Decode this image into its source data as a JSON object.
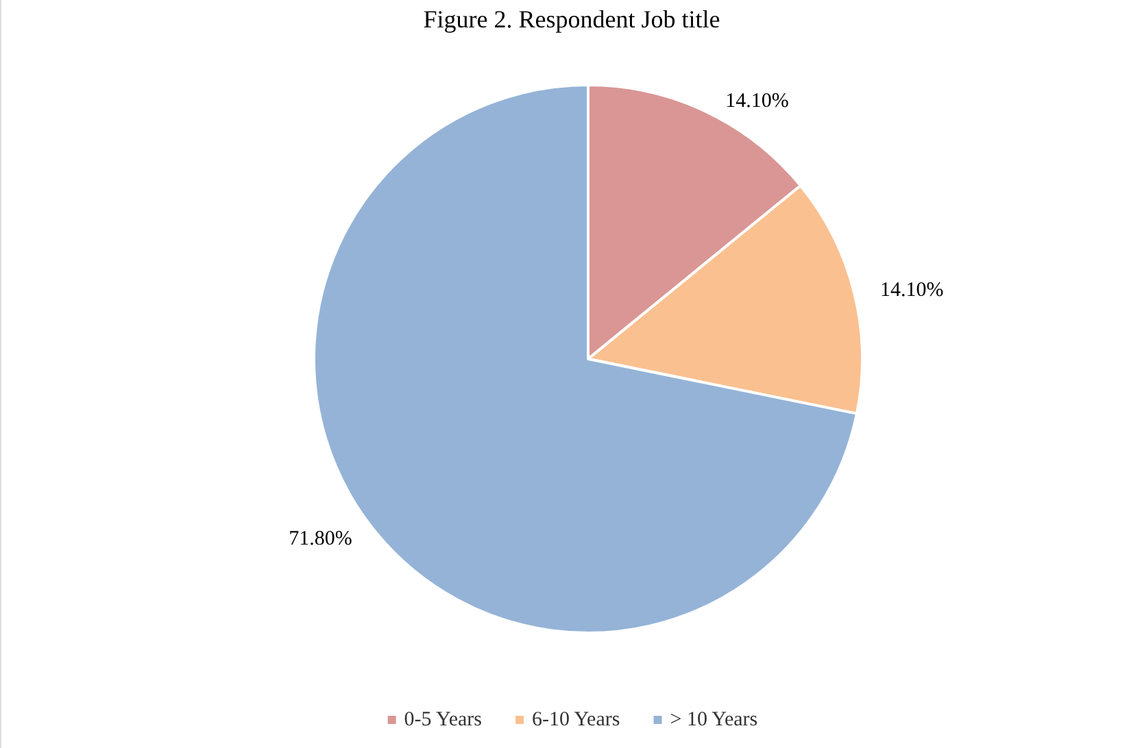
{
  "chart_data": {
    "type": "pie",
    "title": "Figure 2. Respondent Job title",
    "categories": [
      "0-5 Years",
      "6-10 Years",
      "> 10 Years"
    ],
    "values": [
      14.1,
      14.1,
      71.8
    ],
    "colors": [
      "#d99694",
      "#fac090",
      "#95b3d7"
    ],
    "value_labels": [
      "14.10%",
      "14.10%",
      "71.80%"
    ],
    "legend": "bottom"
  }
}
